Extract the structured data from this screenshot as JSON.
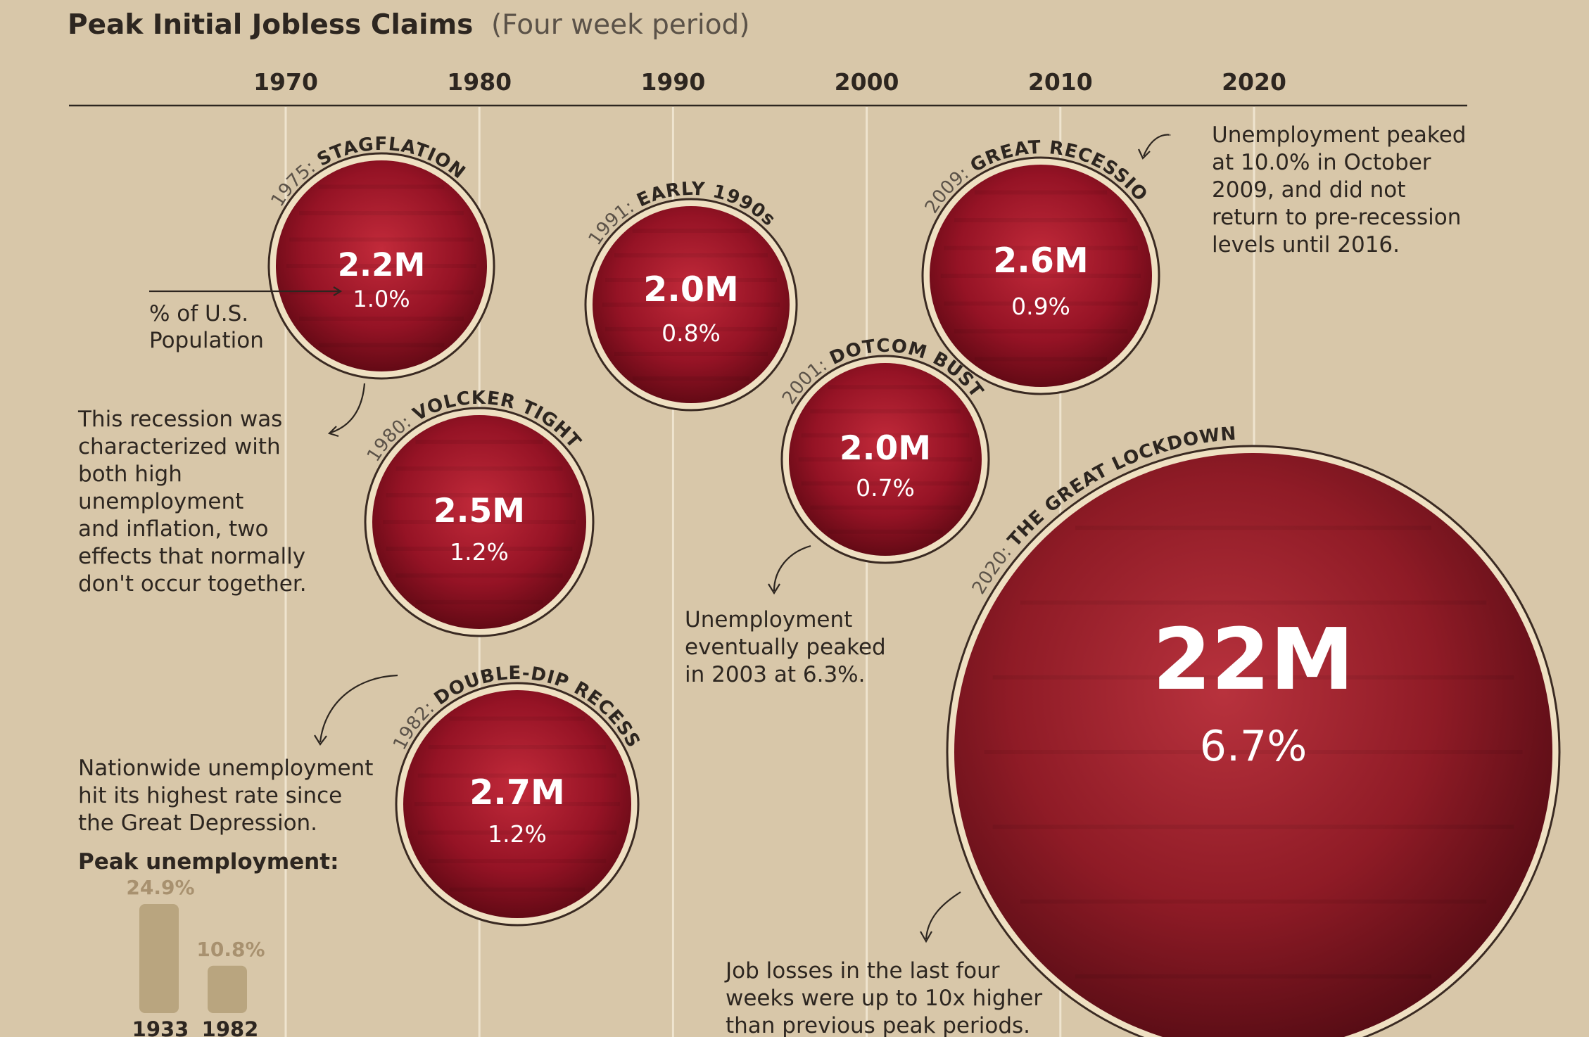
{
  "header": {
    "title": "Peak Initial Jobless Claims",
    "subtitle": "(Four week period)"
  },
  "colors": {
    "background": "#d8c7a9",
    "bubble": "#a8182a",
    "bubble_dark": "#5a0812",
    "ring": "#3a2a22",
    "mini_bar": "#b9a57f"
  },
  "chart_data": {
    "type": "scatter",
    "title": "Peak Initial Jobless Claims",
    "subtitle": "(Four week period)",
    "x_ticks": [
      1970,
      1980,
      1990,
      2000,
      2010,
      2020
    ],
    "xlim": [
      1960,
      2030
    ],
    "grid": true,
    "size_measure": "peak initial jobless claims",
    "points": [
      {
        "year": 1975,
        "name": "STAGFLATION",
        "year_label": "1975:",
        "claims_label": "2.2M",
        "claims_m": 2.2,
        "pct_label": "1.0%",
        "pct": 1.0
      },
      {
        "year": 1980,
        "name": "VOLCKER TIGHTENING",
        "year_label": "1980:",
        "claims_label": "2.5M",
        "claims_m": 2.5,
        "pct_label": "1.2%",
        "pct": 1.2
      },
      {
        "year": 1982,
        "name": "DOUBLE-DIP RECESSION",
        "year_label": "1982:",
        "claims_label": "2.7M",
        "claims_m": 2.7,
        "pct_label": "1.2%",
        "pct": 1.2
      },
      {
        "year": 1991,
        "name": "EARLY 1990s",
        "year_label": "1991:",
        "claims_label": "2.0M",
        "claims_m": 2.0,
        "pct_label": "0.8%",
        "pct": 0.8
      },
      {
        "year": 2001,
        "name": "DOTCOM BUST",
        "year_label": "2001:",
        "claims_label": "2.0M",
        "claims_m": 2.0,
        "pct_label": "0.7%",
        "pct": 0.7
      },
      {
        "year": 2009,
        "name": "GREAT RECESSION",
        "year_label": "2009:",
        "claims_label": "2.6M",
        "claims_m": 2.6,
        "pct_label": "0.9%",
        "pct": 0.9
      },
      {
        "year": 2020,
        "name": "THE GREAT LOCKDOWN",
        "year_label": "2020:",
        "claims_label": "22M",
        "claims_m": 22,
        "pct_label": "6.7%",
        "pct": 6.7
      }
    ],
    "inset": {
      "type": "bar",
      "title": "Peak unemployment:",
      "categories": [
        "1933",
        "1982"
      ],
      "values": [
        24.9,
        10.8
      ],
      "value_labels": [
        "24.9%",
        "10.8%"
      ]
    }
  },
  "annotations": {
    "pct_legend": [
      "% of U.S.",
      "Population"
    ],
    "stagflation_note": [
      "This recession was",
      "characterized with",
      "both high",
      "unemployment",
      "and inflation, two",
      "effects that normally",
      "don't occur together."
    ],
    "double_dip_note": [
      "Nationwide unemployment",
      "hit its highest rate since",
      "the Great Depression."
    ],
    "great_recession_note": [
      "Unemployment peaked",
      "at 10.0% in October",
      "2009, and did not",
      "return to pre-recession",
      "levels until 2016."
    ],
    "dotcom_note": [
      "Unemployment",
      "eventually peaked",
      "in 2003 at 6.3%."
    ],
    "lockdown_note": [
      "Job losses in the last four",
      "weeks were up to 10x higher",
      "than previous peak periods."
    ]
  }
}
